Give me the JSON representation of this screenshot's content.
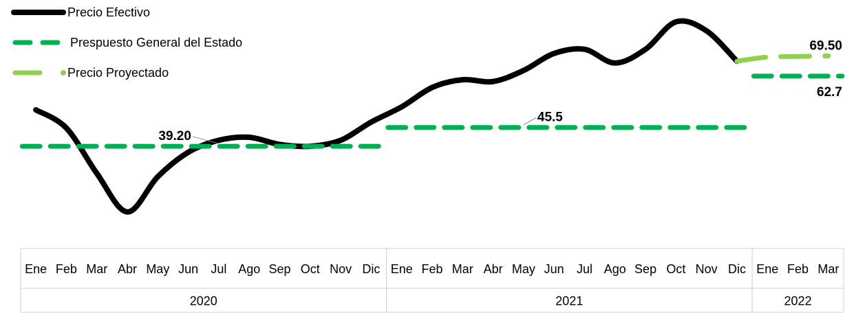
{
  "chart_data": {
    "type": "line",
    "x": [
      "Ene",
      "Feb",
      "Mar",
      "Abr",
      "May",
      "Jun",
      "Jul",
      "Ago",
      "Sep",
      "Oct",
      "Nov",
      "Dic",
      "Ene",
      "Feb",
      "Mar",
      "Abr",
      "May",
      "Jun",
      "Jul",
      "Ago",
      "Sep",
      "Oct",
      "Nov",
      "Dic",
      "Ene",
      "Feb",
      "Mar"
    ],
    "x_groups": [
      {
        "label": "2020",
        "count": 12
      },
      {
        "label": "2021",
        "count": 12
      },
      {
        "label": "2022",
        "count": 3
      }
    ],
    "ylim": [
      10,
      85
    ],
    "legend": "top-left",
    "series": [
      {
        "name": "Precio Efectivo",
        "color": "#000000",
        "style": "solid",
        "values": [
          51.4,
          45.3,
          30.1,
          17.2,
          29.0,
          37.2,
          41.2,
          42.2,
          39.8,
          39.2,
          41.2,
          47.3,
          52.4,
          58.9,
          61.5,
          60.9,
          64.6,
          70.3,
          71.7,
          67.1,
          71.7,
          80.9,
          77.9,
          67.7,
          null,
          null,
          null
        ]
      },
      {
        "name": "Prespuesto General del Estado",
        "color": "#00b050",
        "style": "dashed",
        "values": [
          39.2,
          39.2,
          39.2,
          39.2,
          39.2,
          39.2,
          39.2,
          39.2,
          39.2,
          39.2,
          39.2,
          39.2,
          45.5,
          45.5,
          45.5,
          45.5,
          45.5,
          45.5,
          45.5,
          45.5,
          45.5,
          45.5,
          45.5,
          45.5,
          62.7,
          62.7,
          62.7
        ],
        "value_labels": [
          null,
          null,
          null,
          null,
          null,
          null,
          "39.20",
          null,
          null,
          null,
          null,
          null,
          null,
          null,
          null,
          null,
          "45.5",
          null,
          null,
          null,
          null,
          null,
          null,
          null,
          null,
          null,
          "62.7"
        ]
      },
      {
        "name": "Precio Proyectado",
        "color": "#92d050",
        "style": "dashed",
        "values": [
          null,
          null,
          null,
          null,
          null,
          null,
          null,
          null,
          null,
          null,
          null,
          null,
          null,
          null,
          null,
          null,
          null,
          null,
          null,
          null,
          null,
          null,
          null,
          67.7,
          69.1,
          69.3,
          69.5
        ],
        "value_labels": [
          null,
          null,
          null,
          null,
          null,
          null,
          null,
          null,
          null,
          null,
          null,
          null,
          null,
          null,
          null,
          null,
          null,
          null,
          null,
          null,
          null,
          null,
          null,
          null,
          null,
          null,
          "69.50"
        ]
      }
    ]
  }
}
